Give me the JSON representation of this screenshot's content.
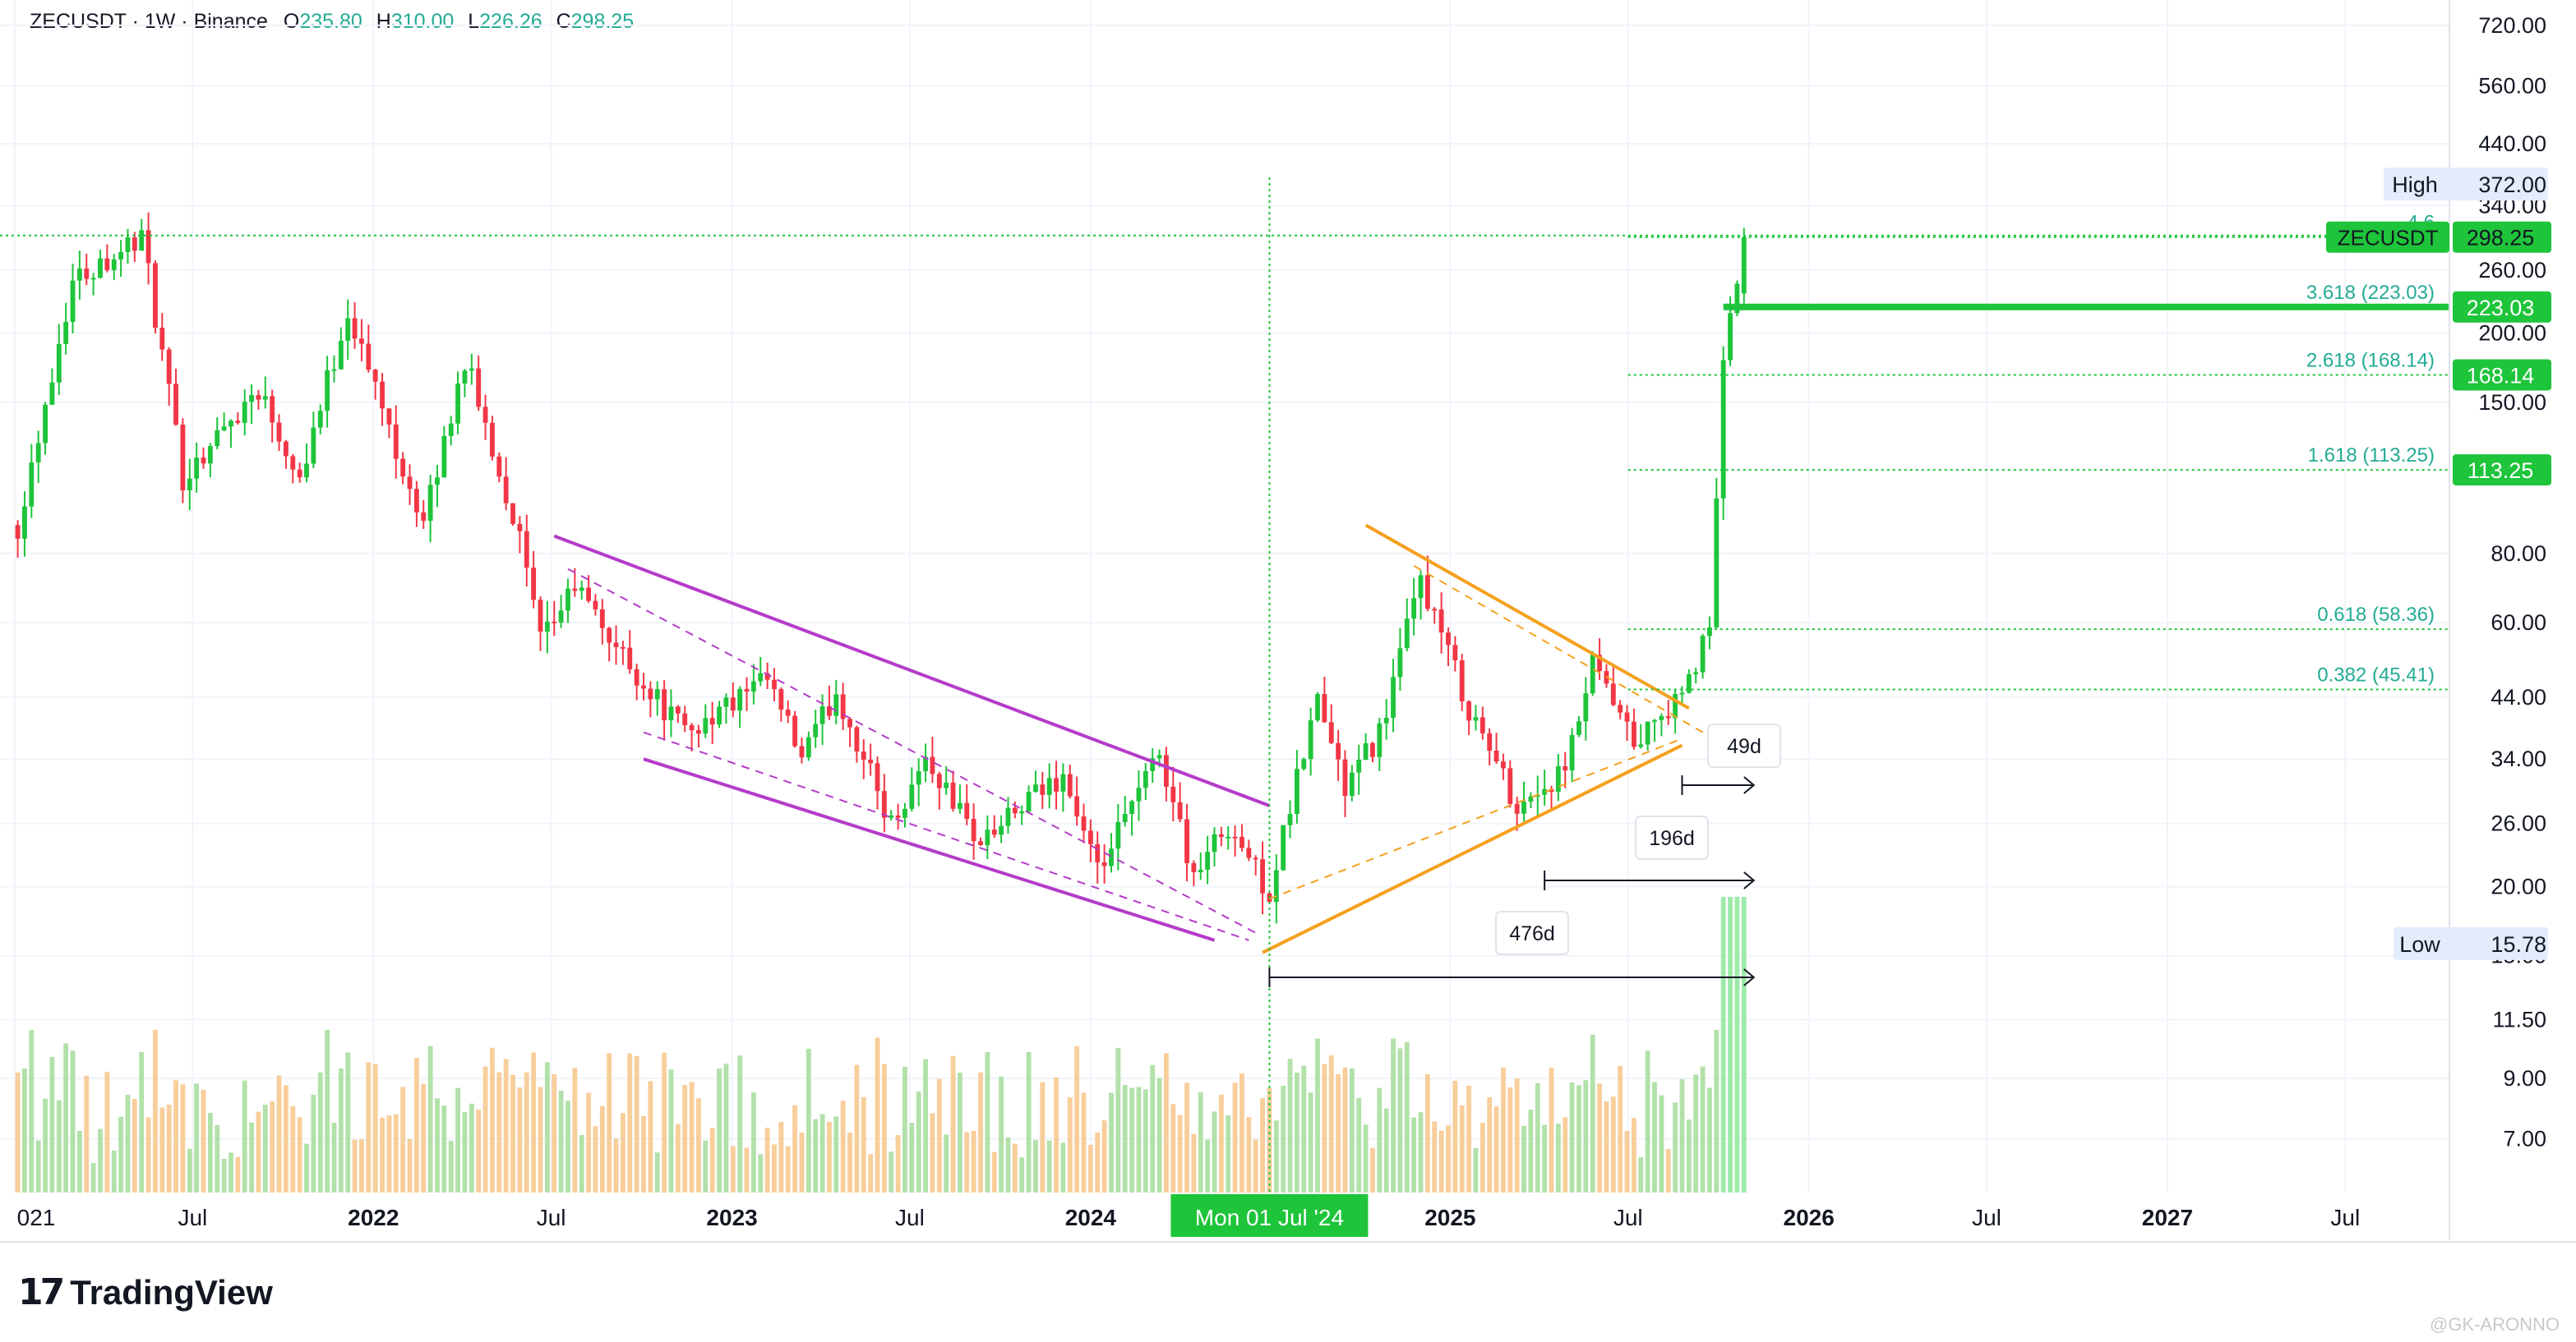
{
  "header": {
    "symbol": "ZECUSDT",
    "interval": "1W",
    "exchange": "Binance",
    "o_label": "O",
    "open": "235.80",
    "h_label": "H",
    "high": "310.00",
    "l_label": "L",
    "low": "226.26",
    "c_label": "C",
    "close": "298.25"
  },
  "colors": {
    "up": "#22ab94",
    "down": "#f23645",
    "bright_green": "#1ec43a",
    "channel": "#b43cc8",
    "triangle": "#f5a01e",
    "grid": "#f0f3fa"
  },
  "chart_data": {
    "type": "candlestick",
    "symbol": "ZECUSDT",
    "timeframe": "1W",
    "y_scale": "log",
    "ylim": [
      5.6,
      800
    ],
    "y_ticks": [
      "720.00",
      "560.00",
      "440.00",
      "340.00",
      "260.00",
      "200.00",
      "150.00",
      "80.00",
      "60.00",
      "44.00",
      "34.00",
      "26.00",
      "20.00",
      "15.00",
      "11.50",
      "9.00",
      "7.00"
    ],
    "x_ticks": [
      "021",
      "Jul",
      "2022",
      "Jul",
      "2023",
      "Jul",
      "2024",
      "2025",
      "Jul",
      "2026",
      "Jul",
      "2027",
      "Jul"
    ],
    "x_ticks_bold": [
      "2022",
      "2023",
      "2024",
      "2025",
      "2026",
      "2027"
    ],
    "crosshair_label": "Mon 01 Jul '24",
    "price_labels": {
      "high": {
        "label": "High",
        "value": "372.00"
      },
      "last": {
        "label": "ZECUSDT",
        "value": "298.25"
      },
      "low": {
        "label": "Low",
        "value": "15.78"
      },
      "levels": [
        "223.03",
        "168.14",
        "113.25"
      ]
    },
    "fib_levels": [
      {
        "label": "4.6",
        "value": 298.25
      },
      {
        "label": "3.618 (223.03)",
        "value": 223.03
      },
      {
        "label": "2.618 (168.14)",
        "value": 168.14
      },
      {
        "label": "1.618 (113.25)",
        "value": 113.25
      },
      {
        "label": "0.618 (58.36)",
        "value": 58.36
      },
      {
        "label": "0.382 (45.41)",
        "value": 45.41
      }
    ],
    "durations": [
      {
        "label": "49d"
      },
      {
        "label": "196d"
      },
      {
        "label": "476d"
      }
    ],
    "anchors": [
      {
        "date": "2021-01-04",
        "price": 90
      },
      {
        "date": "2021-03-01",
        "price": 250
      },
      {
        "date": "2021-05-10",
        "price": 300
      },
      {
        "date": "2021-06-21",
        "price": 110
      },
      {
        "date": "2021-09-06",
        "price": 160
      },
      {
        "date": "2021-10-18",
        "price": 110
      },
      {
        "date": "2021-12-06",
        "price": 220
      },
      {
        "date": "2022-02-21",
        "price": 90
      },
      {
        "date": "2022-04-04",
        "price": 180
      },
      {
        "date": "2022-05-30",
        "price": 85
      },
      {
        "date": "2022-06-20",
        "price": 55
      },
      {
        "date": "2022-07-25",
        "price": 70
      },
      {
        "date": "2022-09-19",
        "price": 50
      },
      {
        "date": "2022-11-14",
        "price": 38
      },
      {
        "date": "2023-02-06",
        "price": 47
      },
      {
        "date": "2023-03-13",
        "price": 34
      },
      {
        "date": "2023-04-17",
        "price": 45
      },
      {
        "date": "2023-06-12",
        "price": 26
      },
      {
        "date": "2023-07-17",
        "price": 34
      },
      {
        "date": "2023-09-11",
        "price": 24
      },
      {
        "date": "2023-12-04",
        "price": 32
      },
      {
        "date": "2024-01-08",
        "price": 21
      },
      {
        "date": "2024-03-11",
        "price": 35
      },
      {
        "date": "2024-04-15",
        "price": 21
      },
      {
        "date": "2024-05-20",
        "price": 26
      },
      {
        "date": "2024-07-01",
        "price": 19.5
      },
      {
        "date": "2024-08-19",
        "price": 44
      },
      {
        "date": "2024-09-16",
        "price": 30
      },
      {
        "date": "2024-10-21",
        "price": 38
      },
      {
        "date": "2024-12-02",
        "price": 72
      },
      {
        "date": "2025-01-20",
        "price": 42
      },
      {
        "date": "2025-03-10",
        "price": 28
      },
      {
        "date": "2025-04-28",
        "price": 32
      },
      {
        "date": "2025-05-26",
        "price": 50
      },
      {
        "date": "2025-07-07",
        "price": 36
      },
      {
        "date": "2025-08-25",
        "price": 44
      },
      {
        "date": "2025-09-22",
        "price": 58
      },
      {
        "date": "2025-10-06",
        "price": 180
      },
      {
        "date": "2025-10-27",
        "price": 298.25
      }
    ],
    "channel": {
      "upper": [
        {
          "date": "2022-07-04",
          "price": 86
        },
        {
          "date": "2024-07-01",
          "price": 28
        }
      ],
      "middle": [
        {
          "date": "2022-07-18",
          "price": 75
        },
        {
          "date": "2024-06-17",
          "price": 16.5
        }
      ],
      "lower": [
        {
          "date": "2022-10-03",
          "price": 34
        },
        {
          "date": "2024-05-06",
          "price": 16
        }
      ],
      "inner_lower": [
        {
          "date": "2022-10-03",
          "price": 38
        },
        {
          "date": "2024-06-10",
          "price": 16
        }
      ]
    },
    "triangle": {
      "upper": [
        {
          "date": "2024-10-07",
          "price": 90
        },
        {
          "date": "2025-09-01",
          "price": 42
        }
      ],
      "lower": [
        {
          "date": "2024-06-24",
          "price": 15.2
        },
        {
          "date": "2025-08-25",
          "price": 36
        }
      ],
      "upper_dashed": [
        {
          "date": "2024-11-25",
          "price": 76
        },
        {
          "date": "2025-09-15",
          "price": 38
        }
      ],
      "lower_dashed": [
        {
          "date": "2024-07-01",
          "price": 19
        },
        {
          "date": "2025-08-25",
          "price": 37
        }
      ]
    }
  },
  "branding": {
    "name": "TradingView",
    "watermark": "@GK-ARONNO"
  }
}
